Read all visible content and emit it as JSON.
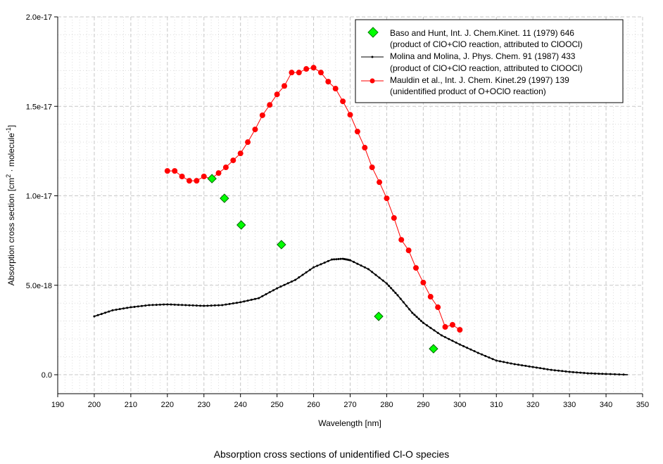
{
  "chart_data": {
    "type": "scatter",
    "title": "Absorption cross sections of unidentified Cl-O species",
    "xlabel": "Wavelength [nm]",
    "ylabel": "Absorption cross section [cm",
    "ylabel_sup1": "2",
    "ylabel_mid": " · molecule",
    "ylabel_sup2": "-1",
    "ylabel_end": "]",
    "xlim": [
      190,
      350
    ],
    "ylim": [
      0,
      2e-17
    ],
    "xticks": [
      "190",
      "200",
      "210",
      "220",
      "230",
      "240",
      "250",
      "260",
      "270",
      "280",
      "290",
      "300",
      "310",
      "320",
      "330",
      "340",
      "350"
    ],
    "yticks": [
      {
        "v": 0,
        "label": "0.0"
      },
      {
        "v": 5e-18,
        "label": "5.0e-18"
      },
      {
        "v": 1e-17,
        "label": "1.0e-17"
      },
      {
        "v": 1.5e-17,
        "label": "1.5e-17"
      },
      {
        "v": 2e-17,
        "label": "2.0e-17"
      }
    ],
    "grid": true,
    "legend_position": "top-right",
    "series": [
      {
        "name": "Baso and Hunt, Int. J. Chem.Kinet. 11 (1979) 646",
        "name2": "(product of ClO+ClO reaction, attributed to ClOOCl)",
        "style": "diamond",
        "color": "#00ff00",
        "x": [
          232.2,
          235.6,
          240.2,
          251.2,
          277.8,
          292.8
        ],
        "y": [
          1.096e-17,
          9.86e-18,
          8.37e-18,
          7.27e-18,
          3.26e-18,
          1.45e-18
        ]
      },
      {
        "name": "Molina and Molina, J. Phys. Chem. 91 (1987) 433",
        "name2": "(product of ClO+ClO reaction, attributed to ClOOCl)",
        "style": "line-small",
        "color": "#000000",
        "x": [
          200,
          205,
          210,
          215,
          220,
          225,
          230,
          235,
          240,
          245,
          250,
          255,
          260,
          265,
          268,
          270,
          275,
          280,
          283,
          287,
          290,
          295,
          300,
          305,
          310,
          315,
          320,
          325,
          330,
          335,
          340,
          346
        ],
        "y": [
          3.26e-18,
          3.6e-18,
          3.77e-18,
          3.89e-18,
          3.93e-18,
          3.89e-18,
          3.85e-18,
          3.89e-18,
          4.05e-18,
          4.28e-18,
          4.83e-18,
          5.3e-18,
          6e-18,
          6.44e-18,
          6.48e-18,
          6.4e-18,
          5.9e-18,
          5.1e-18,
          4.44e-18,
          3.46e-18,
          2.9e-18,
          2.2e-18,
          1.69e-18,
          1.22e-18,
          7.9e-19,
          5.9e-19,
          4.3e-19,
          2.7e-19,
          1.6e-19,
          8e-20,
          4e-20,
          0.0
        ]
      },
      {
        "name": "Mauldin et al., Int. J. Chem. Kinet.29 (1997) 139",
        "name2": "(unidentified product of O+OClO reaction)",
        "style": "line-circle",
        "color": "#ff0000",
        "x": [
          220,
          222,
          224,
          226,
          228,
          230,
          232,
          234,
          236,
          238,
          240,
          242,
          244,
          246,
          248,
          250,
          252,
          254,
          256,
          258,
          260,
          262,
          264,
          266,
          268,
          270,
          272,
          274,
          276,
          278,
          280,
          282,
          284,
          286,
          288,
          290,
          292,
          294,
          296,
          298,
          300
        ],
        "y": [
          1.139e-17,
          1.139e-17,
          1.108e-17,
          1.084e-17,
          1.084e-17,
          1.108e-17,
          1.096e-17,
          1.127e-17,
          1.159e-17,
          1.198e-17,
          1.237e-17,
          1.3e-17,
          1.371e-17,
          1.45e-17,
          1.508e-17,
          1.567e-17,
          1.614e-17,
          1.689e-17,
          1.689e-17,
          1.709e-17,
          1.716e-17,
          1.689e-17,
          1.638e-17,
          1.599e-17,
          1.528e-17,
          1.453e-17,
          1.359e-17,
          1.269e-17,
          1.159e-17,
          1.076e-17,
          9.86e-18,
          8.76e-18,
          7.54e-18,
          6.95e-18,
          5.97e-18,
          5.15e-18,
          4.36e-18,
          3.77e-18,
          2.67e-18,
          2.79e-18,
          2.51e-18
        ]
      }
    ]
  }
}
